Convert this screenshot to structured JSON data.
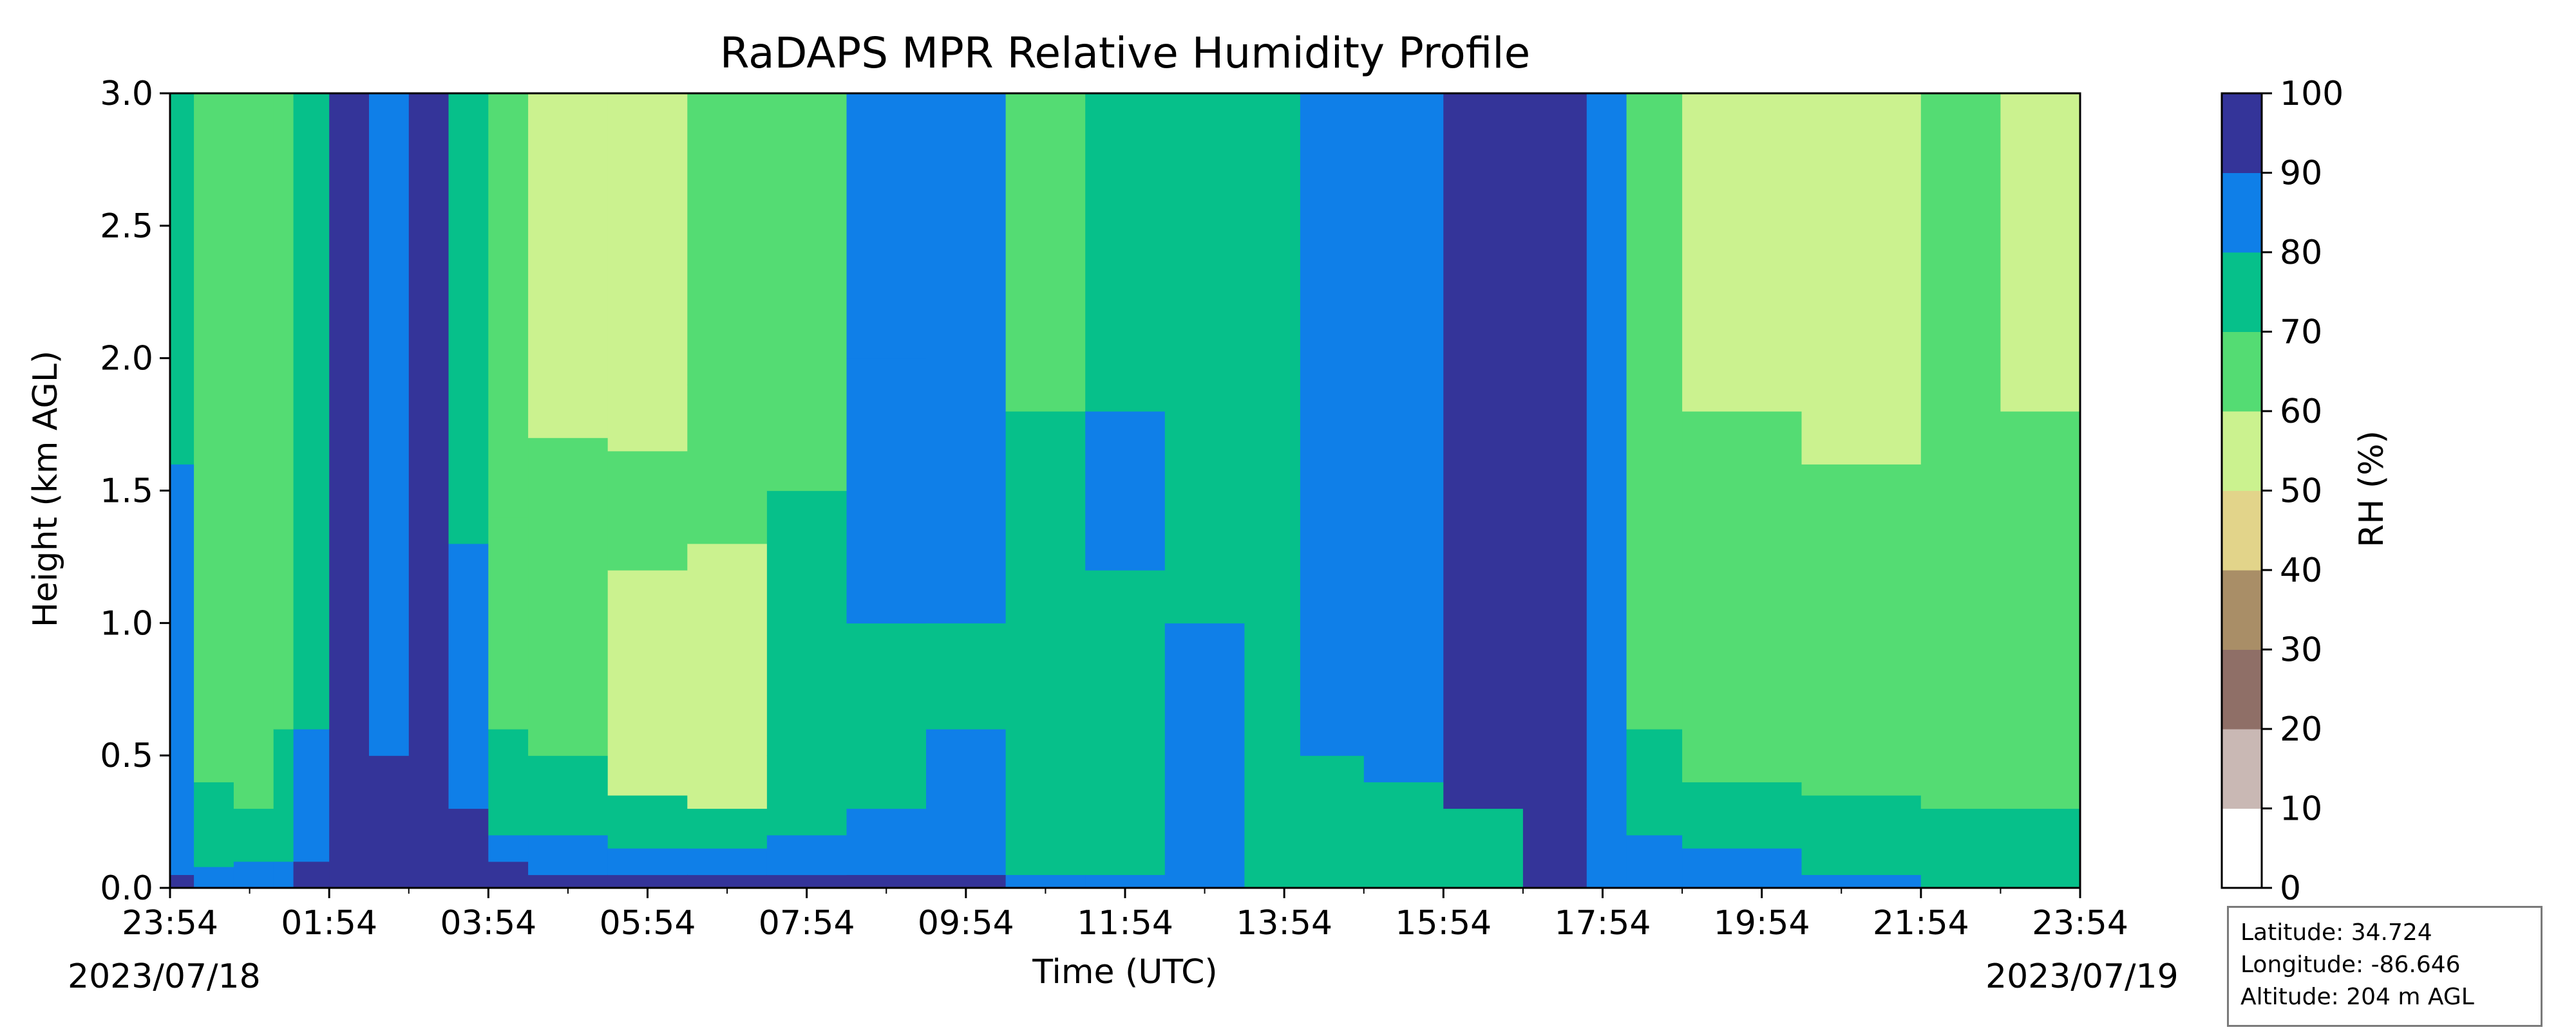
{
  "chart_data": {
    "type": "heatmap",
    "title": "RaDAPS MPR Relative Humidity Profile",
    "xlabel": "Time (UTC)",
    "ylabel": "Height (km AGL)",
    "x_tick_labels": [
      "23:54",
      "01:54",
      "03:54",
      "05:54",
      "07:54",
      "09:54",
      "11:54",
      "13:54",
      "15:54",
      "17:54",
      "19:54",
      "21:54",
      "23:54"
    ],
    "x_start_date": "2023/07/18",
    "x_end_date": "2023/07/19",
    "x_range_hours": [
      0,
      24
    ],
    "ylim": [
      0.0,
      3.0
    ],
    "y_ticks": [
      "0.0",
      "0.5",
      "1.0",
      "1.5",
      "2.0",
      "2.5",
      "3.0"
    ],
    "colorbar": {
      "label": "RH (%)",
      "levels": [
        0,
        10,
        20,
        30,
        40,
        50,
        60,
        70,
        80,
        90,
        100
      ],
      "colors": [
        "#ffffff",
        "#c9b8b4",
        "#8f6f67",
        "#a98e67",
        "#e2d48a",
        "#cbf28f",
        "#54dc73",
        "#06c08a",
        "#0f7fe8",
        "#343499"
      ]
    },
    "grid": false,
    "columns": [
      {
        "t": 0.0,
        "p": [
          [
            0,
            0.05,
            90
          ],
          [
            0.05,
            0.3,
            80
          ],
          [
            0.3,
            1.6,
            80
          ],
          [
            1.6,
            3.0,
            70
          ]
        ]
      },
      {
        "t": 0.3,
        "p": [
          [
            0,
            0.08,
            80
          ],
          [
            0.08,
            0.4,
            70
          ],
          [
            0.4,
            3.0,
            60
          ]
        ]
      },
      {
        "t": 0.8,
        "p": [
          [
            0,
            0.1,
            80
          ],
          [
            0.1,
            0.3,
            70
          ],
          [
            0.3,
            3.0,
            60
          ]
        ]
      },
      {
        "t": 1.3,
        "p": [
          [
            0,
            0.1,
            80
          ],
          [
            0.1,
            0.6,
            70
          ],
          [
            0.6,
            3.0,
            60
          ]
        ]
      },
      {
        "t": 1.55,
        "p": [
          [
            0,
            0.1,
            90
          ],
          [
            0.1,
            0.6,
            80
          ],
          [
            0.6,
            3.0,
            70
          ]
        ]
      },
      {
        "t": 2.0,
        "p": [
          [
            0,
            3.0,
            90
          ]
        ]
      },
      {
        "t": 2.5,
        "p": [
          [
            0,
            0.5,
            90
          ],
          [
            0.5,
            3.0,
            80
          ]
        ]
      },
      {
        "t": 3.0,
        "p": [
          [
            0,
            3.0,
            90
          ]
        ]
      },
      {
        "t": 3.5,
        "p": [
          [
            0,
            0.3,
            90
          ],
          [
            0.3,
            1.3,
            80
          ],
          [
            1.3,
            3.0,
            70
          ]
        ]
      },
      {
        "t": 4.0,
        "p": [
          [
            0,
            0.1,
            90
          ],
          [
            0.1,
            0.2,
            80
          ],
          [
            0.2,
            0.6,
            70
          ],
          [
            0.6,
            1.4,
            60
          ],
          [
            1.4,
            1.8,
            60
          ],
          [
            1.8,
            3.0,
            60
          ]
        ]
      },
      {
        "t": 4.5,
        "p": [
          [
            0,
            0.05,
            90
          ],
          [
            0.05,
            0.2,
            80
          ],
          [
            0.2,
            0.5,
            70
          ],
          [
            0.5,
            1.2,
            60
          ],
          [
            1.2,
            1.7,
            60
          ],
          [
            1.7,
            3.0,
            50
          ]
        ]
      },
      {
        "t": 5.5,
        "p": [
          [
            0,
            0.05,
            90
          ],
          [
            0.05,
            0.15,
            80
          ],
          [
            0.15,
            0.35,
            70
          ],
          [
            0.35,
            1.2,
            50
          ],
          [
            1.2,
            1.65,
            60
          ],
          [
            1.65,
            3.0,
            50
          ]
        ]
      },
      {
        "t": 6.5,
        "p": [
          [
            0,
            0.05,
            90
          ],
          [
            0.05,
            0.15,
            80
          ],
          [
            0.15,
            0.3,
            70
          ],
          [
            0.3,
            1.3,
            50
          ],
          [
            1.3,
            1.9,
            60
          ],
          [
            1.9,
            3.0,
            60
          ]
        ]
      },
      {
        "t": 7.5,
        "p": [
          [
            0,
            0.05,
            90
          ],
          [
            0.05,
            0.2,
            80
          ],
          [
            0.2,
            0.5,
            70
          ],
          [
            0.5,
            1.5,
            70
          ],
          [
            1.5,
            3.0,
            60
          ]
        ]
      },
      {
        "t": 8.5,
        "p": [
          [
            0,
            0.05,
            90
          ],
          [
            0.05,
            0.3,
            80
          ],
          [
            0.3,
            1.0,
            70
          ],
          [
            1.0,
            2.0,
            80
          ],
          [
            2.0,
            3.0,
            80
          ]
        ]
      },
      {
        "t": 9.5,
        "p": [
          [
            0,
            0.05,
            90
          ],
          [
            0.05,
            0.6,
            80
          ],
          [
            0.6,
            1.0,
            70
          ],
          [
            1.0,
            3.0,
            80
          ]
        ]
      },
      {
        "t": 10.5,
        "p": [
          [
            0,
            0.05,
            80
          ],
          [
            0.05,
            0.4,
            70
          ],
          [
            0.4,
            1.8,
            70
          ],
          [
            1.8,
            3.0,
            60
          ]
        ]
      },
      {
        "t": 11.5,
        "p": [
          [
            0,
            0.05,
            80
          ],
          [
            0.05,
            1.2,
            70
          ],
          [
            1.2,
            1.8,
            80
          ],
          [
            1.8,
            3.0,
            70
          ]
        ]
      },
      {
        "t": 12.5,
        "p": [
          [
            0,
            0.05,
            80
          ],
          [
            0.05,
            1.0,
            80
          ],
          [
            1.0,
            3.0,
            70
          ]
        ]
      },
      {
        "t": 13.5,
        "p": [
          [
            0,
            3.0,
            70
          ]
        ]
      },
      {
        "t": 14.2,
        "p": [
          [
            0,
            0.5,
            70
          ],
          [
            0.5,
            3.0,
            80
          ]
        ]
      },
      {
        "t": 15.0,
        "p": [
          [
            0,
            0.4,
            70
          ],
          [
            0.4,
            3.0,
            80
          ]
        ]
      },
      {
        "t": 16.0,
        "p": [
          [
            0,
            0.3,
            70
          ],
          [
            0.3,
            3.0,
            90
          ]
        ]
      },
      {
        "t": 17.0,
        "p": [
          [
            0,
            3.0,
            90
          ]
        ]
      },
      {
        "t": 17.8,
        "p": [
          [
            0,
            0.3,
            80
          ],
          [
            0.3,
            3.0,
            80
          ]
        ]
      },
      {
        "t": 18.3,
        "p": [
          [
            0,
            0.2,
            80
          ],
          [
            0.2,
            0.6,
            70
          ],
          [
            0.6,
            3.0,
            60
          ]
        ]
      },
      {
        "t": 19.0,
        "p": [
          [
            0,
            0.15,
            80
          ],
          [
            0.15,
            0.4,
            70
          ],
          [
            0.4,
            1.8,
            60
          ],
          [
            1.8,
            3.0,
            50
          ]
        ]
      },
      {
        "t": 20.5,
        "p": [
          [
            0,
            0.05,
            80
          ],
          [
            0.05,
            0.35,
            70
          ],
          [
            0.35,
            1.6,
            60
          ],
          [
            1.6,
            3.0,
            50
          ]
        ]
      },
      {
        "t": 22.0,
        "p": [
          [
            0,
            0.3,
            70
          ],
          [
            0.3,
            3.0,
            60
          ]
        ]
      },
      {
        "t": 23.0,
        "p": [
          [
            0,
            0.3,
            70
          ],
          [
            0.3,
            1.8,
            60
          ],
          [
            1.8,
            3.0,
            50
          ]
        ]
      }
    ]
  },
  "info_box": {
    "latitude": "Latitude: 34.724",
    "longitude": "Longitude: -86.646",
    "altitude": "Altitude: 204 m AGL"
  }
}
